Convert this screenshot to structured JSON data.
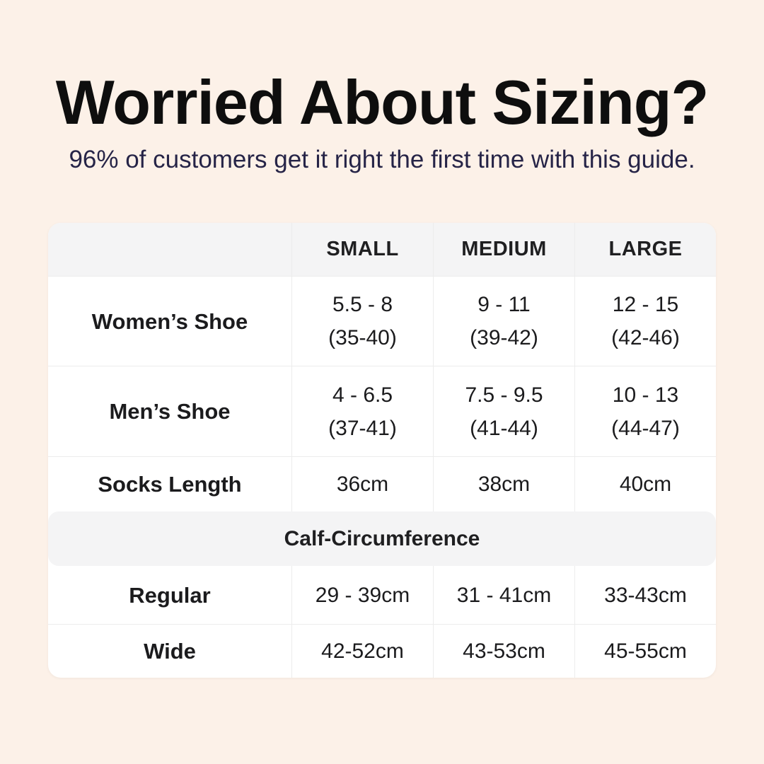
{
  "page": {
    "background_color": "#fcf1e8",
    "title_color": "#0e0e0e",
    "subtitle_color": "#262447",
    "band_color": "#f4f4f5"
  },
  "header": {
    "title": "Worried About Sizing?",
    "subtitle": "96% of customers get it right the first time with this guide."
  },
  "size_table": {
    "column_headers": {
      "small": "SMALL",
      "medium": "MEDIUM",
      "large": "LARGE"
    },
    "rows": [
      {
        "label": "Women’s Shoe",
        "small": [
          "5.5 - 8",
          "(35-40)"
        ],
        "medium": [
          "9 - 11",
          "(39-42)"
        ],
        "large": [
          "12 - 15",
          "(42-46)"
        ]
      },
      {
        "label": "Men’s Shoe",
        "small": [
          "4 - 6.5",
          "(37-41)"
        ],
        "medium": [
          "7.5 - 9.5",
          "(41-44)"
        ],
        "large": [
          "10 - 13",
          "(44-47)"
        ]
      },
      {
        "label": "Socks Length",
        "small": [
          "36cm"
        ],
        "medium": [
          "38cm"
        ],
        "large": [
          "40cm"
        ]
      }
    ],
    "calf_section": {
      "title": "Calf-Circumference",
      "rows": [
        {
          "label": "Regular",
          "small": "29 - 39cm",
          "medium": "31 - 41cm",
          "large": "33-43cm"
        },
        {
          "label": "Wide",
          "small": "42-52cm",
          "medium": "43-53cm",
          "large": "45-55cm"
        }
      ]
    }
  }
}
